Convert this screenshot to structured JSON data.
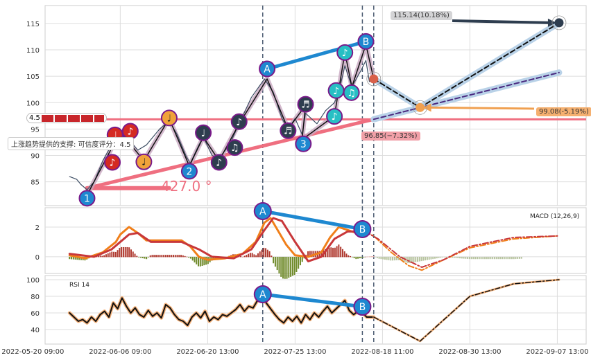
{
  "chart_data": {
    "type": "line",
    "title": "",
    "x_ticks": [
      "2022-05-20 09:00",
      "2022-06-06 09:00",
      "2022-06-20 13:00",
      "2022-07-25 13:00",
      "2022-08-18 11:00",
      "2022-08-30 13:00",
      "2022-09-07 13:00"
    ],
    "x_unit": "tick index",
    "xlim": [
      0.14,
      6.33
    ],
    "panels": {
      "price": {
        "ylim": [
          80.5,
          118.4
        ],
        "y_ticks": [
          85,
          90,
          95,
          100,
          105,
          110,
          115
        ],
        "price": [
          [
            0.42,
            86
          ],
          [
            0.5,
            85.5
          ],
          [
            0.55,
            84.5
          ],
          [
            0.62,
            83.5
          ],
          [
            0.7,
            85
          ],
          [
            0.8,
            89
          ],
          [
            0.9,
            92
          ],
          [
            1.0,
            94
          ],
          [
            1.1,
            93
          ],
          [
            1.2,
            91
          ],
          [
            1.3,
            92
          ],
          [
            1.45,
            95
          ],
          [
            1.56,
            96.5
          ],
          [
            1.65,
            94
          ],
          [
            1.75,
            90
          ],
          [
            1.8,
            88.5
          ],
          [
            1.9,
            92
          ],
          [
            1.95,
            93.5
          ],
          [
            2.05,
            90
          ],
          [
            2.13,
            89.5
          ],
          [
            2.25,
            92
          ],
          [
            2.36,
            96
          ],
          [
            2.5,
            101
          ],
          [
            2.65,
            104.5
          ],
          [
            2.75,
            102
          ],
          [
            2.85,
            97
          ],
          [
            2.92,
            95
          ],
          [
            3.0,
            97
          ],
          [
            3.08,
            94
          ],
          [
            3.12,
            98
          ],
          [
            3.25,
            96
          ],
          [
            3.35,
            98.5
          ],
          [
            3.45,
            100
          ],
          [
            3.5,
            102
          ],
          [
            3.57,
            107
          ],
          [
            3.65,
            103
          ],
          [
            3.75,
            106
          ],
          [
            3.81,
            108
          ],
          [
            3.85,
            104
          ],
          [
            3.9,
            104.5
          ]
        ],
        "zigzag": [
          [
            0.62,
            82.5
          ],
          [
            1.0,
            94.5
          ],
          [
            1.27,
            89
          ],
          [
            1.56,
            97
          ],
          [
            1.79,
            88
          ],
          [
            1.95,
            93.5
          ],
          [
            2.13,
            89
          ],
          [
            2.36,
            96
          ],
          [
            2.68,
            104.5
          ],
          [
            2.92,
            95
          ],
          [
            3.12,
            99.5
          ],
          [
            3.08,
            93
          ],
          [
            3.45,
            97.5
          ],
          [
            3.57,
            109.5
          ],
          [
            3.65,
            103
          ],
          [
            3.81,
            111
          ],
          [
            3.9,
            104.5
          ]
        ],
        "support_level": 96.85,
        "rising_trendline": [
          [
            0.62,
            83.8
          ],
          [
            3.9,
            96.85
          ]
        ],
        "angle_base": [
          [
            0.62,
            83.8
          ],
          [
            1.56,
            83.8
          ]
        ],
        "angle_label": "427.0 °",
        "ab_line": [
          [
            2.68,
            106.4
          ],
          [
            3.81,
            111.6
          ]
        ],
        "vlines": [
          2.63,
          3.77,
          3.9
        ],
        "forecast_path": [
          [
            3.9,
            104.5
          ],
          [
            4.43,
            99.1
          ],
          [
            6.02,
            115.1
          ]
        ],
        "forecast_trend": [
          [
            3.9,
            96.85
          ],
          [
            6.02,
            105.7
          ]
        ],
        "markers": [
          {
            "t": 0.62,
            "v": 81.9,
            "label": "1",
            "color": "#1e88d0"
          },
          {
            "t": 0.91,
            "v": 88.7,
            "label": "♪",
            "color": "#d42a22"
          },
          {
            "t": 0.94,
            "v": 93.9,
            "label": "♩",
            "color": "#d42a22"
          },
          {
            "t": 1.08,
            "v": 94.6,
            "label": "♪",
            "color": "#d42a22"
          },
          {
            "t": 1.27,
            "v": 88.8,
            "label": "♩",
            "color": "#f0a23a"
          },
          {
            "t": 1.56,
            "v": 97.1,
            "label": "♩",
            "color": "#f0a23a"
          },
          {
            "t": 1.79,
            "v": 87.0,
            "label": "2",
            "color": "#1e88d0"
          },
          {
            "t": 1.95,
            "v": 94.3,
            "label": "♩",
            "color": "#2e3d4f"
          },
          {
            "t": 2.13,
            "v": 88.7,
            "label": "♪",
            "color": "#2e3d4f"
          },
          {
            "t": 2.31,
            "v": 91.5,
            "label": "♫",
            "color": "#2e3d4f"
          },
          {
            "t": 2.36,
            "v": 96.4,
            "label": "♪",
            "color": "#2e3d4f"
          },
          {
            "t": 2.68,
            "v": 106.4,
            "label": "A",
            "color": "#1e88d0"
          },
          {
            "t": 2.92,
            "v": 94.7,
            "label": "♬",
            "color": "#2e3d4f"
          },
          {
            "t": 3.12,
            "v": 99.7,
            "label": "♬",
            "color": "#2e3d4f"
          },
          {
            "t": 3.08,
            "v": 92.2,
            "label": "3",
            "color": "#1e88d0"
          },
          {
            "t": 3.45,
            "v": 97.4,
            "label": "♪",
            "color": "#27bfc4"
          },
          {
            "t": 3.47,
            "v": 102.3,
            "label": "♪",
            "color": "#27bfc4"
          },
          {
            "t": 3.56,
            "v": 101.9,
            "label": "♫",
            "color": "#27bfc4"
          },
          {
            "t": 3.57,
            "v": 109.5,
            "label": "♪",
            "color": "#27bfc4"
          },
          {
            "t": 3.81,
            "v": 111.6,
            "label": "B",
            "color": "#1e88d0"
          }
        ],
        "targets": {
          "high": {
            "t": 6.02,
            "v": 115.14,
            "text": "115.14(10.18%)"
          },
          "mid": {
            "t": 4.43,
            "v": 99.08,
            "text": "99.08(-5.19%)"
          },
          "support": {
            "t": 3.9,
            "v": 96.85,
            "text": "96.85(−7.32%)"
          },
          "last": {
            "t": 3.9,
            "v": 104.5
          }
        },
        "score_badge": "4.5",
        "support_tooltip": "上涨趋势提供的支撑: 可信度评分：4.5"
      },
      "macd": {
        "label": "MACD (12,26,9)",
        "ylim": [
          -1.12,
          3.3
        ],
        "y_ticks": [
          0,
          2
        ],
        "dif": [
          [
            0.42,
            0.1
          ],
          [
            0.6,
            -0.1
          ],
          [
            0.8,
            0.3
          ],
          [
            0.95,
            1.0
          ],
          [
            1.0,
            1.5
          ],
          [
            1.1,
            2.0
          ],
          [
            1.2,
            1.6
          ],
          [
            1.3,
            1.1
          ],
          [
            1.5,
            1.1
          ],
          [
            1.7,
            1.1
          ],
          [
            1.8,
            0.7
          ],
          [
            1.9,
            0
          ],
          [
            2.0,
            -0.2
          ],
          [
            2.2,
            -0.1
          ],
          [
            2.4,
            0.2
          ],
          [
            2.55,
            1.0
          ],
          [
            2.65,
            2.3
          ],
          [
            2.72,
            2.6
          ],
          [
            2.8,
            1.8
          ],
          [
            2.9,
            0.8
          ],
          [
            3.0,
            0.1
          ],
          [
            3.15,
            0.0
          ],
          [
            3.3,
            0.3
          ],
          [
            3.4,
            1.3
          ],
          [
            3.5,
            2.0
          ],
          [
            3.6,
            1.8
          ],
          [
            3.7,
            1.6
          ],
          [
            3.8,
            1.7
          ]
        ],
        "dea": [
          [
            0.42,
            0.2
          ],
          [
            0.7,
            0.0
          ],
          [
            0.9,
            0.5
          ],
          [
            1.1,
            1.5
          ],
          [
            1.2,
            1.6
          ],
          [
            1.35,
            1.0
          ],
          [
            1.7,
            1.0
          ],
          [
            1.9,
            0.5
          ],
          [
            2.05,
            0.0
          ],
          [
            2.3,
            -0.1
          ],
          [
            2.5,
            0.5
          ],
          [
            2.65,
            1.8
          ],
          [
            2.75,
            2.6
          ],
          [
            2.85,
            2.4
          ],
          [
            3.0,
            1.0
          ],
          [
            3.15,
            -0.3
          ],
          [
            3.3,
            0.0
          ],
          [
            3.45,
            1.2
          ],
          [
            3.6,
            1.7
          ],
          [
            3.8,
            1.7
          ]
        ],
        "dif_forecast": [
          [
            3.8,
            1.7
          ],
          [
            3.9,
            1.4
          ],
          [
            4.1,
            0.3
          ],
          [
            4.3,
            -0.6
          ],
          [
            4.45,
            -0.9
          ],
          [
            4.7,
            -0.2
          ],
          [
            5.0,
            0.6
          ],
          [
            5.5,
            1.2
          ],
          [
            6.0,
            1.4
          ]
        ],
        "dea_forecast": [
          [
            3.8,
            1.7
          ],
          [
            3.95,
            1.2
          ],
          [
            4.2,
            0.0
          ],
          [
            4.45,
            -0.7
          ],
          [
            4.7,
            -0.2
          ],
          [
            5.0,
            0.7
          ],
          [
            5.5,
            1.3
          ],
          [
            6.0,
            1.4
          ]
        ],
        "ab": [
          [
            2.63,
            3.07
          ],
          [
            3.77,
            1.86
          ]
        ]
      },
      "rsi": {
        "label": "RSI 14",
        "ylim": [
          22.5,
          105
        ],
        "y_ticks": [
          40,
          60,
          80,
          100
        ],
        "values": [
          [
            0.42,
            60
          ],
          [
            0.47,
            55
          ],
          [
            0.52,
            50
          ],
          [
            0.57,
            52
          ],
          [
            0.62,
            48
          ],
          [
            0.67,
            55
          ],
          [
            0.72,
            50
          ],
          [
            0.77,
            58
          ],
          [
            0.82,
            62
          ],
          [
            0.87,
            55
          ],
          [
            0.92,
            72
          ],
          [
            0.97,
            65
          ],
          [
            1.02,
            78
          ],
          [
            1.07,
            68
          ],
          [
            1.12,
            60
          ],
          [
            1.17,
            66
          ],
          [
            1.22,
            58
          ],
          [
            1.27,
            55
          ],
          [
            1.32,
            63
          ],
          [
            1.37,
            56
          ],
          [
            1.42,
            60
          ],
          [
            1.47,
            54
          ],
          [
            1.52,
            70
          ],
          [
            1.57,
            66
          ],
          [
            1.62,
            58
          ],
          [
            1.67,
            52
          ],
          [
            1.72,
            50
          ],
          [
            1.77,
            45
          ],
          [
            1.82,
            55
          ],
          [
            1.87,
            60
          ],
          [
            1.92,
            54
          ],
          [
            1.97,
            62
          ],
          [
            2.02,
            50
          ],
          [
            2.07,
            55
          ],
          [
            2.12,
            52
          ],
          [
            2.17,
            58
          ],
          [
            2.22,
            56
          ],
          [
            2.27,
            60
          ],
          [
            2.32,
            64
          ],
          [
            2.37,
            70
          ],
          [
            2.42,
            62
          ],
          [
            2.47,
            68
          ],
          [
            2.52,
            66
          ],
          [
            2.57,
            75
          ],
          [
            2.62,
            80
          ],
          [
            2.67,
            72
          ],
          [
            2.72,
            65
          ],
          [
            2.77,
            58
          ],
          [
            2.82,
            52
          ],
          [
            2.87,
            48
          ],
          [
            2.92,
            55
          ],
          [
            2.97,
            50
          ],
          [
            3.02,
            56
          ],
          [
            3.07,
            48
          ],
          [
            3.12,
            58
          ],
          [
            3.17,
            52
          ],
          [
            3.22,
            60
          ],
          [
            3.27,
            55
          ],
          [
            3.32,
            62
          ],
          [
            3.37,
            68
          ],
          [
            3.42,
            60
          ],
          [
            3.47,
            65
          ],
          [
            3.52,
            70
          ],
          [
            3.57,
            75
          ],
          [
            3.62,
            63
          ],
          [
            3.67,
            58
          ],
          [
            3.72,
            62
          ],
          [
            3.77,
            60
          ],
          [
            3.82,
            55
          ],
          [
            3.9,
            55
          ]
        ],
        "forecast": [
          [
            3.9,
            55
          ],
          [
            4.43,
            26
          ],
          [
            5.0,
            80
          ],
          [
            5.5,
            95
          ],
          [
            6.02,
            100
          ]
        ],
        "ab": [
          [
            2.63,
            82.5
          ],
          [
            3.77,
            67.5
          ]
        ]
      }
    }
  }
}
